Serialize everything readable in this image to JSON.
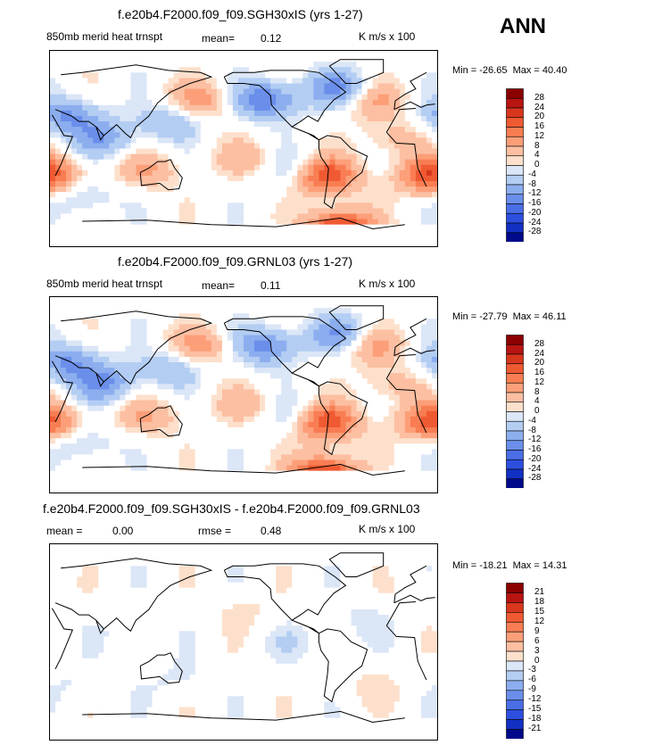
{
  "season": "ANN",
  "colors": {
    "positive": [
      "#fde0cc",
      "#fcbfa2",
      "#fc9f79",
      "#f97d53",
      "#f05a32",
      "#d8361d",
      "#b81412",
      "#8b0000"
    ],
    "zero": "#ffffff",
    "negative": [
      "#dbe6f7",
      "#b3cdf3",
      "#8caeef",
      "#6a8eea",
      "#4a6ee6",
      "#2c4fe0",
      "#1230c4",
      "#000a8a"
    ],
    "land": "#000000"
  },
  "chart_data": [
    {
      "type": "heatmap",
      "title": "f.e20b4.F2000.f09_f09.SGH30xIS (yrs 1-27)",
      "variable": "850mb merid heat trnspt",
      "mean_label": "mean=",
      "mean": "0.12",
      "units": "K m/s x 100",
      "min_label": "Min = ",
      "min": "-26.65",
      "max_label": "Max = ",
      "max": "40.40",
      "levels": [
        "28",
        "24",
        "20",
        "16",
        "12",
        "8",
        "4",
        "0",
        "-4",
        "-8",
        "-12",
        "-16",
        "-20",
        "-24",
        "-28"
      ],
      "anomalies": [
        {
          "lon": 25,
          "lat": -25,
          "v": 20
        },
        {
          "lon": 80,
          "lat": 10,
          "v": -10
        },
        {
          "lon": 120,
          "lat": -20,
          "v": 8
        },
        {
          "lon": -75,
          "lat": -25,
          "v": 22
        },
        {
          "lon": -130,
          "lat": 45,
          "v": -16
        },
        {
          "lon": -30,
          "lat": 45,
          "v": 10
        },
        {
          "lon": -60,
          "lat": 55,
          "v": -14
        },
        {
          "lon": 170,
          "lat": 45,
          "v": 10
        },
        {
          "lon": -100,
          "lat": -20,
          "v": -8
        },
        {
          "lon": 60,
          "lat": -45,
          "v": -6
        },
        {
          "lon": -60,
          "lat": -75,
          "v": 26
        },
        {
          "lon": 45,
          "lat": 30,
          "v": -12
        },
        {
          "lon": -10,
          "lat": 10,
          "v": 6
        },
        {
          "lon": 140,
          "lat": 25,
          "v": -8
        },
        {
          "lon": -150,
          "lat": -10,
          "v": 6
        }
      ]
    },
    {
      "type": "heatmap",
      "title": "f.e20b4.F2000.f09_f09.GRNL03 (yrs 1-27)",
      "variable": "850mb merid heat trnspt",
      "mean_label": "mean=",
      "mean": "0.11",
      "units": "K m/s x 100",
      "min_label": "Min = ",
      "min": "-27.79",
      "max_label": "Max = ",
      "max": "46.11",
      "levels": [
        "28",
        "24",
        "20",
        "16",
        "12",
        "8",
        "4",
        "0",
        "-4",
        "-8",
        "-12",
        "-16",
        "-20",
        "-24",
        "-28"
      ],
      "anomalies": [
        {
          "lon": 25,
          "lat": -25,
          "v": 18
        },
        {
          "lon": 80,
          "lat": 10,
          "v": -12
        },
        {
          "lon": 120,
          "lat": -20,
          "v": 8
        },
        {
          "lon": -75,
          "lat": -25,
          "v": 22
        },
        {
          "lon": -130,
          "lat": 45,
          "v": -14
        },
        {
          "lon": -30,
          "lat": 45,
          "v": 10
        },
        {
          "lon": -60,
          "lat": 55,
          "v": -12
        },
        {
          "lon": 170,
          "lat": 45,
          "v": 10
        },
        {
          "lon": -100,
          "lat": -20,
          "v": -8
        },
        {
          "lon": 60,
          "lat": -45,
          "v": -6
        },
        {
          "lon": -75,
          "lat": -75,
          "v": 26
        },
        {
          "lon": 45,
          "lat": 30,
          "v": -12
        },
        {
          "lon": -10,
          "lat": 10,
          "v": 6
        },
        {
          "lon": 140,
          "lat": 25,
          "v": -8
        },
        {
          "lon": -150,
          "lat": -10,
          "v": 6
        }
      ]
    },
    {
      "type": "heatmap",
      "title": "f.e20b4.F2000.f09_f09.SGH30xIS - f.e20b4.F2000.f09_f09.GRNL03",
      "mean_label": "mean =",
      "mean": "0.00",
      "rmse_label": "rmse =",
      "rmse": "0.48",
      "units": "K m/s x 100",
      "min_label": "Min = ",
      "min": "-18.21",
      "max_label": "Max = ",
      "max": "14.31",
      "levels": [
        "21",
        "18",
        "15",
        "12",
        "9",
        "6",
        "3",
        "0",
        "-3",
        "-6",
        "-9",
        "-12",
        "-15",
        "-18",
        "-21"
      ],
      "anomalies": [
        {
          "lon": -100,
          "lat": 0,
          "v": -2
        },
        {
          "lon": 60,
          "lat": -40,
          "v": -2
        },
        {
          "lon": -30,
          "lat": -40,
          "v": 2
        },
        {
          "lon": 150,
          "lat": -35,
          "v": -2
        },
        {
          "lon": 20,
          "lat": 40,
          "v": 2
        },
        {
          "lon": -150,
          "lat": 30,
          "v": 2
        },
        {
          "lon": 100,
          "lat": 10,
          "v": -1
        },
        {
          "lon": -40,
          "lat": 20,
          "v": -2
        }
      ]
    }
  ]
}
